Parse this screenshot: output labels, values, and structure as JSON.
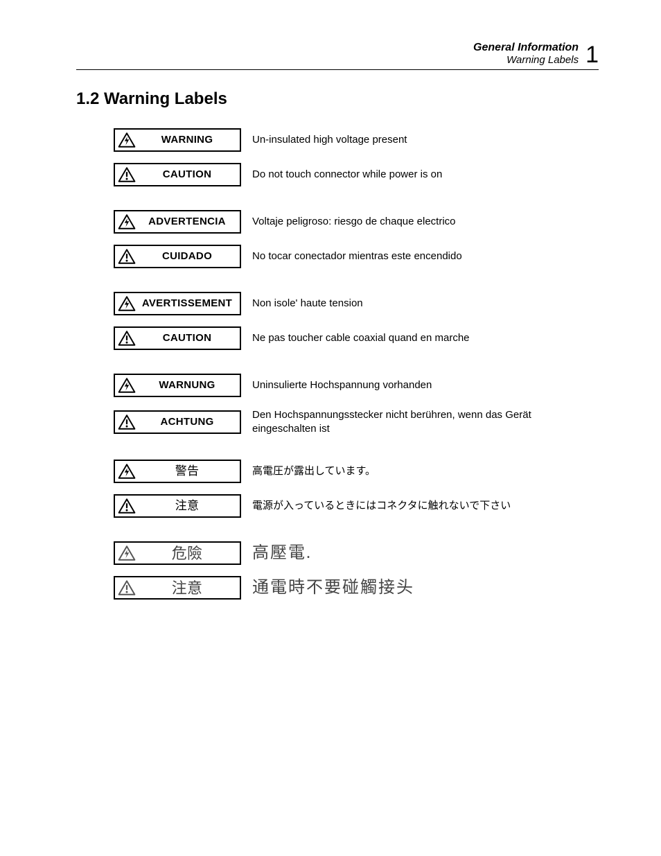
{
  "header": {
    "line1": "General Information",
    "line2": "Warning Labels",
    "chapter_number": "1"
  },
  "section": {
    "title": "1.2 Warning Labels"
  },
  "icons": {
    "shock": "shock-triangle",
    "exclaim": "exclaim-triangle"
  },
  "colors": {
    "stroke": "#000000",
    "background": "#ffffff",
    "zh_stroke": "#555555"
  },
  "groups": [
    {
      "lang": "en",
      "rows": [
        {
          "icon": "shock",
          "label": "WARNING",
          "desc": "Un-insulated high voltage present"
        },
        {
          "icon": "exclaim",
          "label": "CAUTION",
          "desc": "Do not touch connector while power is on"
        }
      ]
    },
    {
      "lang": "es",
      "rows": [
        {
          "icon": "shock",
          "label": "ADVERTENCIA",
          "desc": "Voltaje peligroso: riesgo de chaque electrico"
        },
        {
          "icon": "exclaim",
          "label": "CUIDADO",
          "desc": "No tocar conectador mientras este encendido"
        }
      ]
    },
    {
      "lang": "fr",
      "rows": [
        {
          "icon": "shock",
          "label": "AVERTISSEMENT",
          "desc": "Non isole' haute tension"
        },
        {
          "icon": "exclaim",
          "label": "CAUTION",
          "desc": "Ne pas toucher cable coaxial quand en marche"
        }
      ]
    },
    {
      "lang": "de",
      "rows": [
        {
          "icon": "shock",
          "label": "WARNUNG",
          "desc": "Uninsulierte Hochspannung vorhanden"
        },
        {
          "icon": "exclaim",
          "label": "ACHTUNG",
          "desc": "Den Hochspannungsstecker nicht berühren, wenn das Gerät eingeschalten ist"
        }
      ]
    },
    {
      "lang": "jp",
      "rows": [
        {
          "icon": "shock",
          "label": "警告",
          "desc": "高電圧が露出しています。"
        },
        {
          "icon": "exclaim",
          "label": "注意",
          "desc": "電源が入っているときにはコネクタに触れないで下さい"
        }
      ]
    },
    {
      "lang": "zh",
      "rows": [
        {
          "icon": "shock",
          "label": "危險",
          "desc": "高壓電."
        },
        {
          "icon": "exclaim",
          "label": "注意",
          "desc": "通電時不要碰觸接头"
        }
      ]
    }
  ]
}
